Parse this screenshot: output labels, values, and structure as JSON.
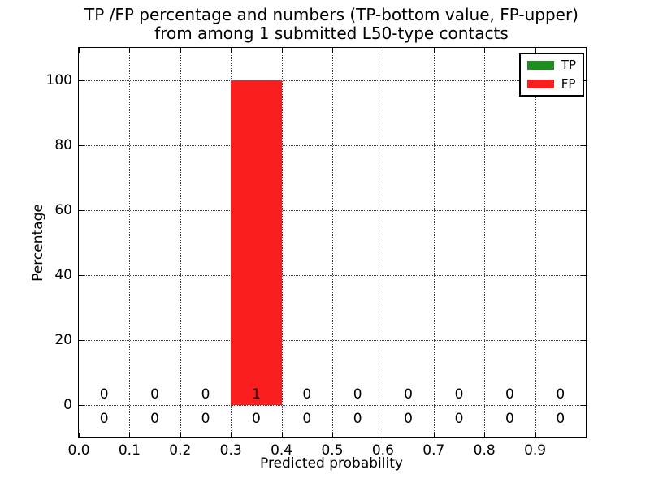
{
  "chart_data": {
    "type": "bar",
    "stacked": true,
    "title_lines": [
      "TP /FP percentage and numbers (TP-bottom value, FP-upper)",
      "from among 1 submitted L50-type contacts"
    ],
    "xlabel": "Predicted probability",
    "ylabel": "Percentage",
    "xlim": [
      0.0,
      1.0
    ],
    "ylim": [
      -10,
      110
    ],
    "xtick_values": [
      0.0,
      0.1,
      0.2,
      0.3,
      0.4,
      0.5,
      0.6,
      0.7,
      0.8,
      0.9
    ],
    "xticks": [
      "0.0",
      "0.1",
      "0.2",
      "0.3",
      "0.4",
      "0.5",
      "0.6",
      "0.7",
      "0.8",
      "0.9"
    ],
    "ytick_values": [
      0,
      20,
      40,
      60,
      80,
      100
    ],
    "yticks": [
      "0",
      "20",
      "40",
      "60",
      "80",
      "100"
    ],
    "bin_edges": [
      0.0,
      0.1,
      0.2,
      0.3,
      0.4,
      0.5,
      0.6,
      0.7,
      0.8,
      0.9,
      1.0
    ],
    "grid": true,
    "series": [
      {
        "name": "TP",
        "color": "#1e8c1e",
        "percentages": [
          0,
          0,
          0,
          0,
          0,
          0,
          0,
          0,
          0,
          0
        ],
        "counts": [
          0,
          0,
          0,
          0,
          0,
          0,
          0,
          0,
          0,
          0
        ]
      },
      {
        "name": "FP",
        "color": "#fa1e1e",
        "percentages": [
          0,
          0,
          0,
          100,
          0,
          0,
          0,
          0,
          0,
          0
        ],
        "counts": [
          0,
          0,
          0,
          1,
          0,
          0,
          0,
          0,
          0,
          0
        ]
      }
    ],
    "count_label_rows": [
      {
        "series": "FP",
        "row": "upper"
      },
      {
        "series": "TP",
        "row": "lower"
      }
    ],
    "legend": {
      "position": "upper right",
      "entries": [
        {
          "label": "TP",
          "color": "#1e8c1e"
        },
        {
          "label": "FP",
          "color": "#fa1e1e"
        }
      ]
    }
  }
}
